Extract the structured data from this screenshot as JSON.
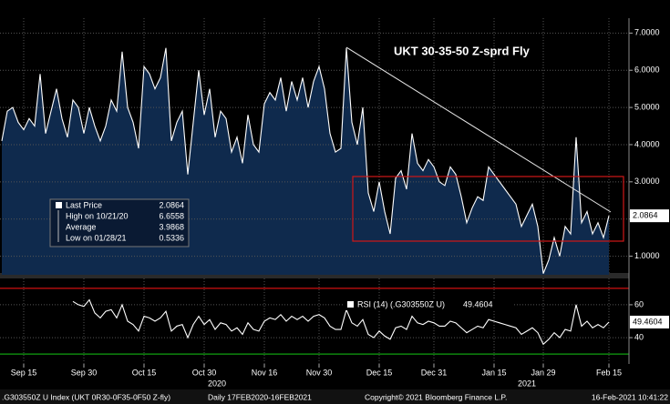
{
  "chart_data": [
    {
      "type": "area",
      "title": "UKT 30-35-50 Z-sprd Fly",
      "categories": [
        null,
        null,
        null,
        null,
        "Sep 15",
        null,
        null,
        null,
        null,
        null,
        null,
        null,
        null,
        null,
        null,
        "Sep 30",
        null,
        null,
        null,
        null,
        null,
        null,
        null,
        null,
        null,
        null,
        "Oct 15",
        null,
        null,
        null,
        null,
        null,
        null,
        null,
        null,
        null,
        null,
        "Oct 30",
        null,
        null,
        null,
        null,
        null,
        null,
        null,
        null,
        null,
        null,
        "Nov 16",
        null,
        null,
        null,
        null,
        null,
        null,
        null,
        null,
        null,
        "Nov 30",
        null,
        null,
        null,
        null,
        null,
        null,
        null,
        null,
        null,
        null,
        "Dec 15",
        null,
        null,
        null,
        null,
        null,
        null,
        null,
        null,
        null,
        "Dec 31",
        null,
        null,
        null,
        null,
        null,
        null,
        null,
        null,
        null,
        null,
        "Jan 15",
        null,
        null,
        null,
        null,
        null,
        null,
        null,
        null,
        "Jan 29",
        null,
        null,
        null,
        null,
        null,
        null,
        null,
        null,
        null,
        null,
        null,
        "Feb 15"
      ],
      "year_labels": [
        "2020",
        "2021"
      ],
      "series": [
        {
          "name": "Last Price",
          "color": "#ffffff",
          "fill": "#0f2a4d",
          "values": [
            4.1,
            4.9,
            5.0,
            4.6,
            4.4,
            4.7,
            4.5,
            5.9,
            4.3,
            4.9,
            5.5,
            4.7,
            4.2,
            5.2,
            5.0,
            4.3,
            5.0,
            4.5,
            4.1,
            4.5,
            5.2,
            4.9,
            6.5,
            5.0,
            4.6,
            3.9,
            6.1,
            5.9,
            5.5,
            5.8,
            6.6,
            4.1,
            4.6,
            4.9,
            3.2,
            4.6,
            6.0,
            4.8,
            5.5,
            4.2,
            4.9,
            4.7,
            3.8,
            4.2,
            3.5,
            4.8,
            4.0,
            3.8,
            5.1,
            5.4,
            5.2,
            5.8,
            4.9,
            5.7,
            5.2,
            5.8,
            5.0,
            5.7,
            6.1,
            5.5,
            4.3,
            3.8,
            3.9,
            6.6,
            4.6,
            4.0,
            5.0,
            2.7,
            2.2,
            3.0,
            2.2,
            1.6,
            3.1,
            3.3,
            2.8,
            4.3,
            3.5,
            3.3,
            3.6,
            3.4,
            3.0,
            2.9,
            3.4,
            3.2,
            2.6,
            1.9,
            2.3,
            2.6,
            2.5,
            3.4,
            3.2,
            3.0,
            2.8,
            2.6,
            2.4,
            1.8,
            2.1,
            2.4,
            1.8,
            0.5336,
            0.9,
            1.5,
            1.0,
            1.8,
            1.6,
            4.2,
            1.9,
            2.2,
            1.6,
            1.9,
            1.5,
            2.0864
          ]
        }
      ],
      "stats": [
        {
          "label": "Last Price",
          "value": 2.0864
        },
        {
          "label": "High on 10/21/20",
          "value": 6.6558
        },
        {
          "label": "Average",
          "value": 3.9868
        },
        {
          "label": "Low on 01/28/21",
          "value": 0.5336
        }
      ],
      "ylim": [
        0.5,
        7.4
      ],
      "yticks": [
        {
          "value": 1,
          "label": "1.0000"
        },
        {
          "value": 2,
          "label": "2.0000"
        },
        {
          "value": 3,
          "label": "3.0000"
        },
        {
          "value": 4,
          "label": "4.0000"
        },
        {
          "value": 5,
          "label": "5.0000"
        },
        {
          "value": 6,
          "label": "6.0000"
        },
        {
          "value": 7,
          "label": "7.0000"
        }
      ],
      "grid": true
    },
    {
      "type": "line",
      "series": [
        {
          "name": "RSI (14) (.G303550Z U)",
          "color": "#ffffff",
          "values": [
            null,
            null,
            null,
            null,
            null,
            null,
            null,
            null,
            null,
            null,
            null,
            null,
            null,
            62,
            60,
            59,
            63,
            55,
            52,
            56,
            57,
            52,
            60,
            50,
            48,
            44,
            53,
            52,
            50,
            52,
            56,
            44,
            47,
            48,
            40,
            48,
            53,
            48,
            51,
            45,
            49,
            48,
            44,
            46,
            42,
            49,
            45,
            44,
            50,
            52,
            51,
            54,
            50,
            53,
            51,
            53,
            50,
            53,
            54,
            52,
            47,
            45,
            45,
            57,
            49,
            47,
            51,
            42,
            40,
            44,
            41,
            39,
            46,
            47,
            45,
            53,
            49,
            48,
            50,
            49,
            47,
            47,
            50,
            49,
            46,
            43,
            45,
            47,
            46,
            51,
            50,
            49,
            48,
            47,
            46,
            42,
            44,
            46,
            43,
            36,
            39,
            43,
            40,
            45,
            44,
            60,
            47,
            50,
            46,
            48,
            46,
            49.4604
          ]
        }
      ],
      "reference_lines": [
        {
          "value": 70,
          "color": "#d01010"
        },
        {
          "value": 30,
          "color": "#10a010"
        }
      ],
      "ylim": [
        24,
        76
      ],
      "yticks": [
        40,
        60
      ],
      "grid": true
    }
  ],
  "footer": {
    "security": ".G303550Z U Index (UKT 0R30-0F35-0F50 Z-fly)",
    "period": "Daily 17FEB2020-16FEB2021",
    "copyright": "Copyright© 2021 Bloomberg Finance L.P.",
    "timestamp": "16-Feb-2021 10:41:22"
  }
}
